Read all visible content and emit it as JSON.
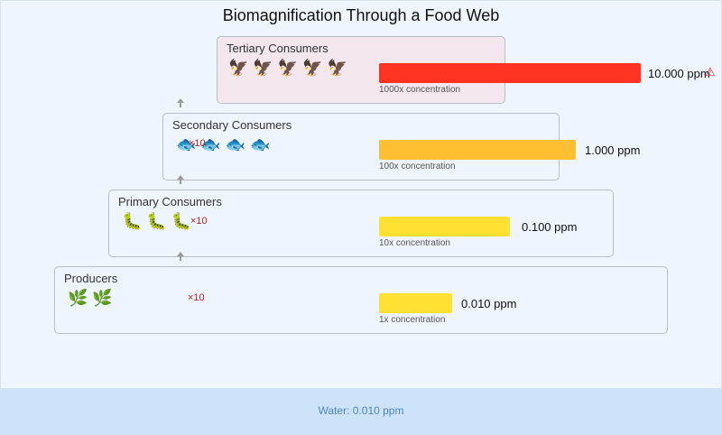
{
  "title": "Biomagnification Through a Food Web",
  "levels": {
    "tertiary": {
      "label": "Tertiary Consumers",
      "organisms": "🦅🦅🦅🦅🦅",
      "organism_icon": "eagle-icon",
      "concentration": "10.000 ppm",
      "caption": "1000x concentration",
      "bar_color": "#ff3322",
      "bar_fraction": 1.0,
      "warning": "⚠"
    },
    "secondary": {
      "label": "Secondary Consumers",
      "organisms": "🐟🐟🐟🐟",
      "organism_icon": "fish-icon",
      "multiplier": "×10",
      "concentration": "1.000 ppm",
      "caption": "100x concentration",
      "bar_color": "#ffbf33",
      "bar_fraction": 0.75
    },
    "primary": {
      "label": "Primary Consumers",
      "organisms": "🐛🐛🐛",
      "organism_icon": "caterpillar-icon",
      "multiplier": "×10",
      "concentration": "0.100 ppm",
      "caption": "10x concentration",
      "bar_color": "#ffe033",
      "bar_fraction": 0.5
    },
    "producers": {
      "label": "Producers",
      "organisms": "🌿🌿",
      "organism_icon": "plant-icon",
      "multiplier": "×10",
      "concentration": "0.010 ppm",
      "caption": "1x concentration",
      "bar_color": "#ffe033",
      "bar_fraction": 0.28
    }
  },
  "water": "Water: 0.010 ppm"
}
